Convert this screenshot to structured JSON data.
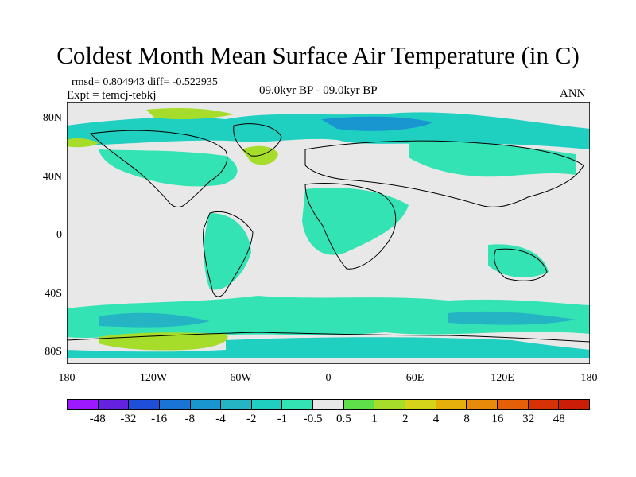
{
  "title": "Coldest Month Mean Surface Air Temperature (in C)",
  "stats": "rmsd= 0.804943 diff= -0.522935",
  "experiment": "Expt = temcj-tebkj",
  "period": "09.0kyr BP - 09.0kyr BP",
  "season": "ANN",
  "lat_labels": [
    "80N",
    "40N",
    "0",
    "40S",
    "80S"
  ],
  "lon_labels": [
    "180",
    "120W",
    "60W",
    "0",
    "60E",
    "120E",
    "180"
  ],
  "colorbar": {
    "labels": [
      "-48",
      "-32",
      "-16",
      "-8",
      "-4",
      "-2",
      "-1",
      "-0.5",
      "0.5",
      "1",
      "2",
      "4",
      "8",
      "16",
      "32",
      "48"
    ],
    "colors": [
      "#9b1aff",
      "#6422e0",
      "#1f4fd8",
      "#1a74d6",
      "#1995d0",
      "#25b4c4",
      "#1fd0c0",
      "#33e3b4",
      "#e8e8e8",
      "#5fe04a",
      "#a6dc2a",
      "#d6d41a",
      "#e6b00c",
      "#e88a0a",
      "#e55e08",
      "#d73206",
      "#cc1e06"
    ]
  },
  "map": {
    "background": "#e8e8e8",
    "patch_colors": {
      "light_cool": "#33e3b4",
      "mid_cool": "#1fd0c0",
      "cool": "#25b4c4",
      "cold": "#1995d0",
      "warm_green": "#5fe04a",
      "warm_lime": "#a6dc2a"
    }
  }
}
